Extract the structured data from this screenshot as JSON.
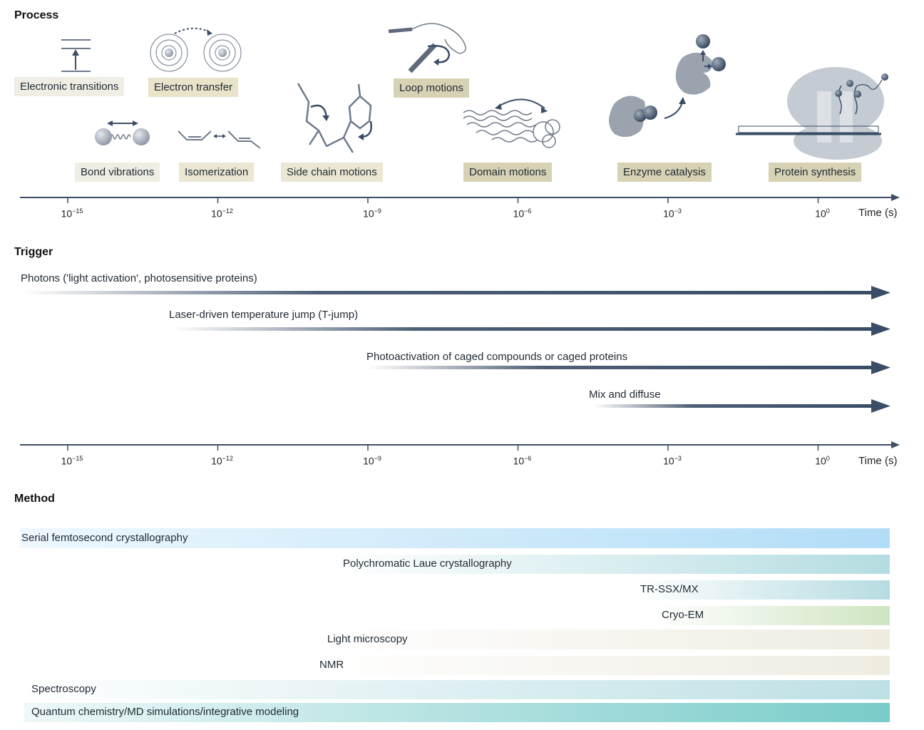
{
  "sections": {
    "process": "Process",
    "trigger": "Trigger",
    "method": "Method"
  },
  "axis": {
    "ticks": [
      {
        "base": "10",
        "exp": "−15"
      },
      {
        "base": "10",
        "exp": "−12"
      },
      {
        "base": "10",
        "exp": "−9"
      },
      {
        "base": "10",
        "exp": "−6"
      },
      {
        "base": "10",
        "exp": "−3"
      },
      {
        "base": "10",
        "exp": "0"
      }
    ],
    "unit": "Time (s)"
  },
  "processes": {
    "electronic_transitions": "Electronic transitions",
    "electron_transfer": "Electron transfer",
    "loop_motions": "Loop motions",
    "bond_vibrations": "Bond vibrations",
    "isomerization": "Isomerization",
    "side_chain_motions": "Side chain motions",
    "domain_motions": "Domain motions",
    "enzyme_catalysis": "Enzyme catalysis",
    "protein_synthesis": "Protein synthesis"
  },
  "triggers": {
    "photons": "Photons ('light activation', photosensitive proteins)",
    "tjump": "Laser-driven temperature jump (T-jump)",
    "caged": "Photoactivation of caged compounds or caged proteins",
    "mix": "Mix and diffuse"
  },
  "methods": {
    "sfx": "Serial femtosecond crystallography",
    "laue": "Polychromatic Laue crystallography",
    "trssx": "TR-SSX/MX",
    "cryoem": "Cryo-EM",
    "light": "Light microscopy",
    "nmr": "NMR",
    "spectroscopy": "Spectroscopy",
    "qc": "Quantum chemistry/MD simulations/integrative modeling"
  },
  "colors": {
    "axis": "#3d4f66",
    "arrow": "#3a4d66",
    "label_light": "#f0eee4",
    "label_dark": "#d8d2b4",
    "blue_bar": "#b9e0f7",
    "teal_bar": "#b6dce0",
    "green_bar": "#d3e6c4",
    "beige_bar": "#efece2",
    "qc_bar": "#7fcfcc"
  }
}
